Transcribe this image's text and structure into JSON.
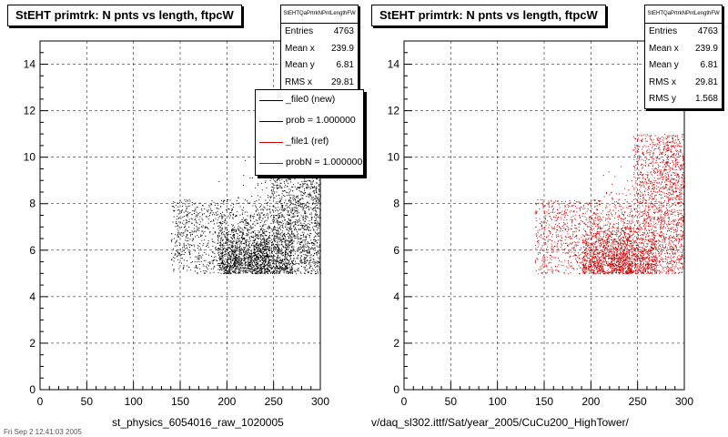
{
  "chart_data": [
    {
      "type": "scatter",
      "title": "StEHT primtrk: N pnts vs length, ftpcW",
      "xlabel": "st_physics_6054016_raw_1020005",
      "ylabel": "",
      "xlim": [
        0,
        300
      ],
      "ylim": [
        0,
        15
      ],
      "x_ticks": [
        "0",
        "50",
        "100",
        "150",
        "200",
        "250",
        "300"
      ],
      "y_ticks": [
        "0",
        "2",
        "4",
        "6",
        "8",
        "10",
        "12",
        "14"
      ],
      "grid": true,
      "marker_color": "#000000",
      "point_count": 4763,
      "stats": {
        "name": "StEHTQaPrtrkNPntLengthFW",
        "rows": [
          {
            "label": "Entries",
            "value": "4763"
          },
          {
            "label": "Mean x",
            "value": "239.9"
          },
          {
            "label": "Mean y",
            "value": "6.81"
          },
          {
            "label": "RMS x",
            "value": "29.81"
          }
        ]
      },
      "legend": {
        "position": "top-right",
        "entries": [
          {
            "label": "_file0 (new)",
            "color": "#000000"
          },
          {
            "label": "prob = 1.000000",
            "color": "#000000"
          },
          {
            "label": "_file1 (ref)",
            "color": "#cc0000"
          },
          {
            "label": "probN = 1.000000",
            "color": "#cc0000"
          }
        ]
      }
    },
    {
      "type": "scatter",
      "title": "StEHT primtrk: N pnts vs length, ftpcW",
      "xlabel": "v/daq_sl302.ittf/Sat/year_2005/CuCu200_HighTower/",
      "ylabel": "",
      "xlim": [
        0,
        300
      ],
      "ylim": [
        0,
        15
      ],
      "x_ticks": [
        "0",
        "50",
        "100",
        "150",
        "200",
        "250",
        "300"
      ],
      "y_ticks": [
        "0",
        "2",
        "4",
        "6",
        "8",
        "10",
        "12",
        "14"
      ],
      "grid": true,
      "marker_color": "#cc0000",
      "point_count": 4763,
      "stats": {
        "name": "StEHTQaPrtrkNPntLengthFW",
        "rows": [
          {
            "label": "Entries",
            "value": "4763"
          },
          {
            "label": "Mean x",
            "value": "239.9"
          },
          {
            "label": "Mean y",
            "value": "6.81"
          },
          {
            "label": "RMS x",
            "value": "29.81"
          },
          {
            "label": "RMS y",
            "value": "1.568"
          }
        ]
      }
    }
  ],
  "footer": "Fri Sep  2 12:41:03 2005"
}
